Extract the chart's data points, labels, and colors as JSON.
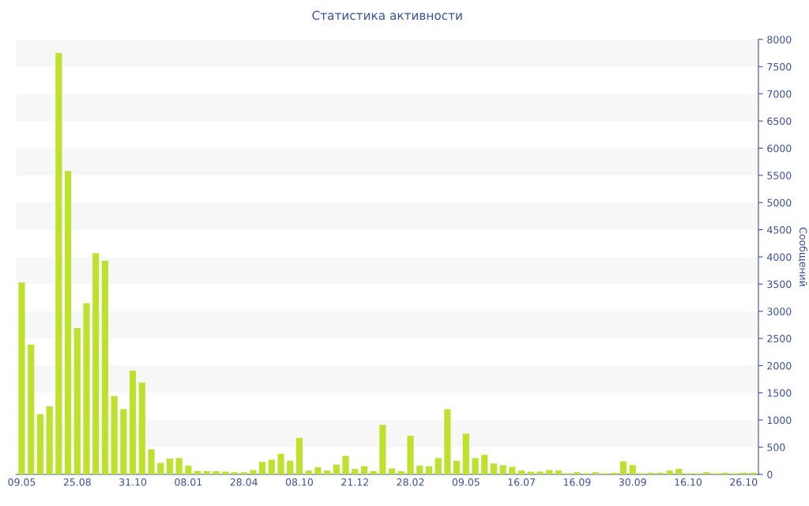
{
  "chart_data": {
    "type": "bar",
    "title": "Статистика активности",
    "ylabel": "Сообщений",
    "categories": [
      "09.05",
      null,
      null,
      null,
      null,
      null,
      "25.08",
      null,
      null,
      null,
      null,
      null,
      "31.10",
      null,
      null,
      null,
      null,
      null,
      "08.01",
      null,
      null,
      null,
      null,
      null,
      "28.04",
      null,
      null,
      null,
      null,
      null,
      "08.10",
      null,
      null,
      null,
      null,
      null,
      "21.12",
      null,
      null,
      null,
      null,
      null,
      "28.02",
      null,
      null,
      null,
      null,
      null,
      "09.05",
      null,
      null,
      null,
      null,
      null,
      "16.07",
      null,
      null,
      null,
      null,
      null,
      "16.09",
      null,
      null,
      null,
      null,
      null,
      "30.09",
      null,
      null,
      null,
      null,
      null,
      "16.10",
      null,
      null,
      null,
      null,
      null,
      "26.10",
      null
    ],
    "values": [
      3530,
      2390,
      1110,
      1250,
      7750,
      5580,
      2690,
      3150,
      4070,
      3930,
      1440,
      1200,
      1910,
      1690,
      460,
      210,
      290,
      300,
      160,
      60,
      60,
      60,
      50,
      40,
      40,
      80,
      230,
      270,
      380,
      250,
      670,
      70,
      130,
      70,
      180,
      340,
      100,
      150,
      60,
      910,
      110,
      60,
      710,
      160,
      150,
      300,
      1200,
      250,
      750,
      300,
      360,
      200,
      170,
      140,
      70,
      50,
      50,
      80,
      70,
      20,
      40,
      20,
      40,
      20,
      30,
      240,
      170,
      20,
      30,
      30,
      70,
      100,
      20,
      20,
      40,
      20,
      30,
      20,
      30,
      30
    ],
    "color": "#bde12f",
    "ylim": [
      0,
      8000
    ],
    "yticks": [
      0,
      500,
      1000,
      1500,
      2000,
      2500,
      3000,
      3500,
      4000,
      4500,
      5000,
      5500,
      6000,
      6500,
      7000,
      7500,
      8000
    ]
  }
}
